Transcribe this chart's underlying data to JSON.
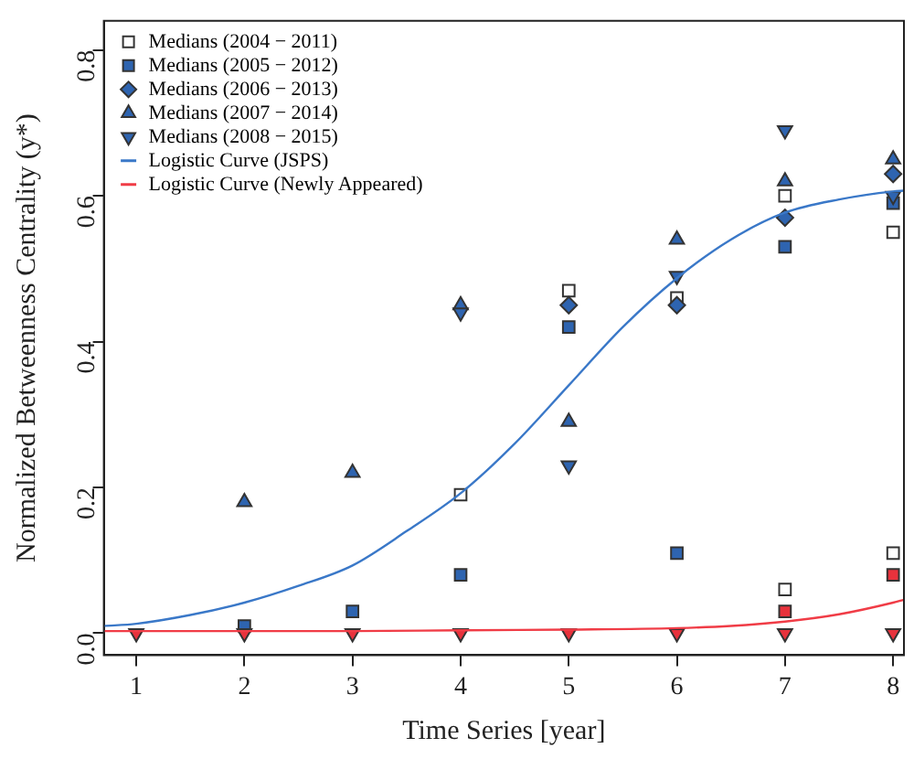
{
  "chart_data": {
    "type": "scatter",
    "xlabel": "Time Series [year]",
    "ylabel": "Normalized Betweenness Centrality (y*)",
    "x": [
      1,
      2,
      3,
      4,
      5,
      6,
      7,
      8
    ],
    "xlim": [
      0.7,
      8.1
    ],
    "xticks": [
      1,
      2,
      3,
      4,
      5,
      6,
      7,
      8
    ],
    "ylim": [
      -0.03,
      0.84
    ],
    "yticks": [
      {
        "value": 0,
        "label": "0.0"
      },
      {
        "value": 0.2,
        "label": "0.2"
      },
      {
        "value": 0.4,
        "label": "0.4"
      },
      {
        "value": 0.6,
        "label": "0.6"
      },
      {
        "value": 0.8,
        "label": "0.8"
      }
    ],
    "grid": false,
    "legend": "top left",
    "series": [
      {
        "name": "Medians (2004 − 2011)",
        "marker": "square",
        "color": "#ffffff",
        "values": [
          null,
          null,
          null,
          0.19,
          0.47,
          0.46,
          0.6,
          0.55
        ]
      },
      {
        "name": "Medians (2005 − 2012)",
        "marker": "square",
        "color": "#2e64b0",
        "values": [
          null,
          0.01,
          0.03,
          0.08,
          0.42,
          0.11,
          0.53,
          0.59
        ]
      },
      {
        "name": "Medians (2006 − 2013)",
        "marker": "diamond",
        "color": "#2e64b0",
        "values": [
          null,
          null,
          null,
          null,
          0.45,
          0.45,
          0.57,
          0.63
        ]
      },
      {
        "name": "Medians (2007 − 2014)",
        "marker": "triangle",
        "color": "#2e64b0",
        "values": [
          null,
          0.18,
          0.22,
          0.45,
          0.29,
          0.54,
          0.62,
          0.65
        ]
      },
      {
        "name": "Medians (2008 − 2015)",
        "marker": "triangle-down",
        "color": "#2e64b0",
        "values": [
          null,
          null,
          null,
          0.44,
          0.23,
          0.49,
          0.69,
          0.6
        ]
      },
      {
        "marker": "square",
        "color": "#ffffff",
        "values": [
          null,
          null,
          null,
          null,
          null,
          null,
          0.06,
          0.11
        ]
      },
      {
        "marker": "square",
        "color": "#e8323c",
        "values": [
          null,
          null,
          null,
          null,
          null,
          null,
          0.03,
          0.08
        ]
      },
      {
        "marker": "triangle-down",
        "color": "#e8323c",
        "values": [
          0,
          0,
          0,
          0,
          0,
          0,
          0,
          0
        ]
      },
      {
        "name": "Logistic Curve (JSPS)",
        "type": "line",
        "marker": "none",
        "color": "#3a78c8",
        "x": [
          0.7,
          1,
          1.5,
          2,
          2.5,
          3,
          3.5,
          4,
          4.5,
          5,
          5.5,
          6,
          6.5,
          7,
          7.5,
          8,
          8.1
        ],
        "values": [
          0.01,
          0.013,
          0.025,
          0.042,
          0.065,
          0.093,
          0.14,
          0.192,
          0.26,
          0.34,
          0.42,
          0.487,
          0.54,
          0.577,
          0.595,
          0.606,
          0.607
        ]
      },
      {
        "name": "Logistic Curve (Newly Appeared)",
        "type": "line",
        "marker": "none",
        "color": "#f03c46",
        "x": [
          0.7,
          2,
          3,
          4,
          5,
          6,
          6.5,
          7,
          7.5,
          8,
          8.1
        ],
        "values": [
          0.003,
          0.003,
          0.003,
          0.004,
          0.005,
          0.007,
          0.01,
          0.016,
          0.026,
          0.042,
          0.046
        ]
      }
    ]
  }
}
